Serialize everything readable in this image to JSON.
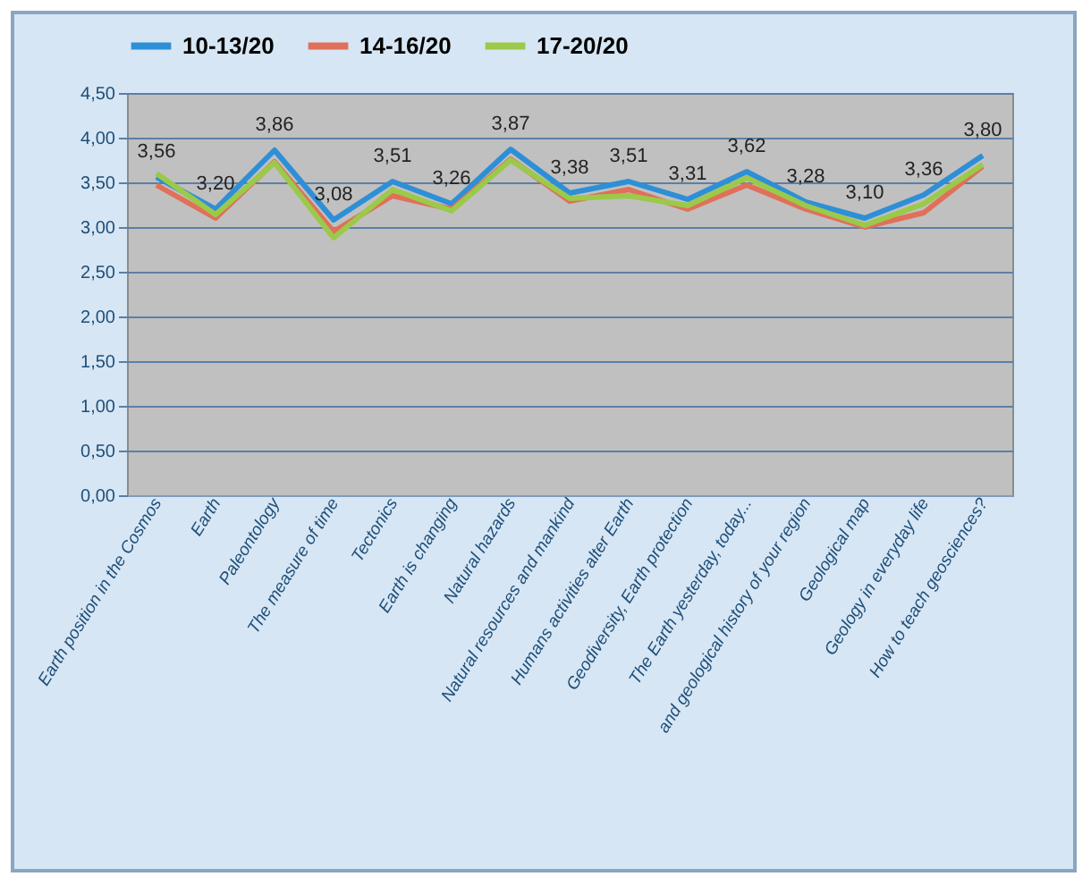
{
  "chart_data": {
    "type": "line",
    "categories": [
      "Earth position in the Cosmos",
      "Earth",
      "Paleontology",
      "The measure of time",
      "Tectonics",
      "Earth is changing",
      "Natural hazards",
      "Natural  resources and mankind",
      "Humans activities alter Earth",
      "Geodiversity, Earth protection",
      "The Earth yesterday, today...",
      "and geological history of your region",
      "Geological map",
      "Geology in everyday life",
      "How to teach geosciences?"
    ],
    "series": [
      {
        "name": "10-13/20",
        "color": "#2e8fd6",
        "values": [
          3.56,
          3.2,
          3.86,
          3.08,
          3.51,
          3.26,
          3.87,
          3.38,
          3.51,
          3.31,
          3.62,
          3.28,
          3.1,
          3.36,
          3.8
        ],
        "value_labels": [
          "3,56",
          "3,20",
          "3,86",
          "3,08",
          "3,51",
          "3,26",
          "3,87",
          "3,38",
          "3,51",
          "3,31",
          "3,62",
          "3,28",
          "3,10",
          "3,36",
          "3,80"
        ]
      },
      {
        "name": "14-16/20",
        "color": "#e0705a",
        "values": [
          3.47,
          3.1,
          3.73,
          2.95,
          3.35,
          3.2,
          3.76,
          3.29,
          3.42,
          3.2,
          3.47,
          3.2,
          3.0,
          3.16,
          3.68
        ]
      },
      {
        "name": "17-20/20",
        "color": "#9bc94a",
        "values": [
          3.6,
          3.14,
          3.72,
          2.88,
          3.42,
          3.18,
          3.75,
          3.32,
          3.35,
          3.24,
          3.55,
          3.24,
          3.02,
          3.26,
          3.7
        ]
      }
    ],
    "ylim": [
      0,
      4.5
    ],
    "yticks": [
      {
        "value": 0,
        "label": "0,00"
      },
      {
        "value": 0.5,
        "label": "0,50"
      },
      {
        "value": 1,
        "label": "1,00"
      },
      {
        "value": 1.5,
        "label": "1,50"
      },
      {
        "value": 2,
        "label": "2,00"
      },
      {
        "value": 2.5,
        "label": "2,50"
      },
      {
        "value": 3,
        "label": "3,00"
      },
      {
        "value": 3.5,
        "label": "3,50"
      },
      {
        "value": 4,
        "label": "4,00"
      },
      {
        "value": 4.5,
        "label": "4,50"
      }
    ],
    "grid": "y",
    "legend": "top",
    "marker": "none",
    "line_style": "solid"
  }
}
